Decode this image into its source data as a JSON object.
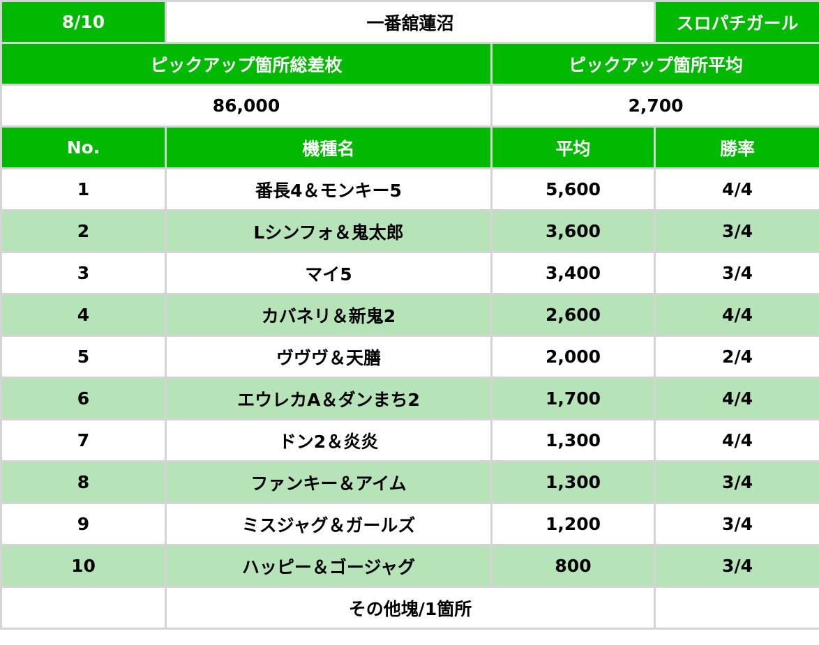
{
  "header": {
    "date": "8/10",
    "store": "一番舘蓮沼",
    "source": "スロパチガール"
  },
  "summary": {
    "total_label": "ピックアップ箇所総差枚",
    "average_label": "ピックアップ箇所平均",
    "total_value": "86,000",
    "average_value": "2,700"
  },
  "columns": {
    "no": "No.",
    "machine": "機種名",
    "average": "平均",
    "win_rate": "勝率"
  },
  "rows": [
    {
      "no": "1",
      "machine": "番長4＆モンキー5",
      "average": "5,600",
      "win_rate": "4/4"
    },
    {
      "no": "2",
      "machine": "Lシンフォ＆鬼太郎",
      "average": "3,600",
      "win_rate": "3/4"
    },
    {
      "no": "3",
      "machine": "マイ5",
      "average": "3,400",
      "win_rate": "3/4"
    },
    {
      "no": "4",
      "machine": "カバネリ＆新鬼2",
      "average": "2,600",
      "win_rate": "4/4"
    },
    {
      "no": "5",
      "machine": "ヴヴヴ＆天膳",
      "average": "2,000",
      "win_rate": "2/4"
    },
    {
      "no": "6",
      "machine": "エウレカA＆ダンまち2",
      "average": "1,700",
      "win_rate": "4/4"
    },
    {
      "no": "7",
      "machine": "ドン2＆炎炎",
      "average": "1,300",
      "win_rate": "4/4"
    },
    {
      "no": "8",
      "machine": "ファンキー＆アイム",
      "average": "1,300",
      "win_rate": "3/4"
    },
    {
      "no": "9",
      "machine": "ミスジャグ＆ガールズ",
      "average": "1,200",
      "win_rate": "3/4"
    },
    {
      "no": "10",
      "machine": "ハッピー＆ゴージャグ",
      "average": "800",
      "win_rate": "3/4"
    }
  ],
  "footer": {
    "note": "その他塊/1箇所"
  },
  "colors": {
    "header_green": "#00b900",
    "stripe_light_green": "#b7e3b9",
    "border_gray": "#d4d4d4"
  }
}
